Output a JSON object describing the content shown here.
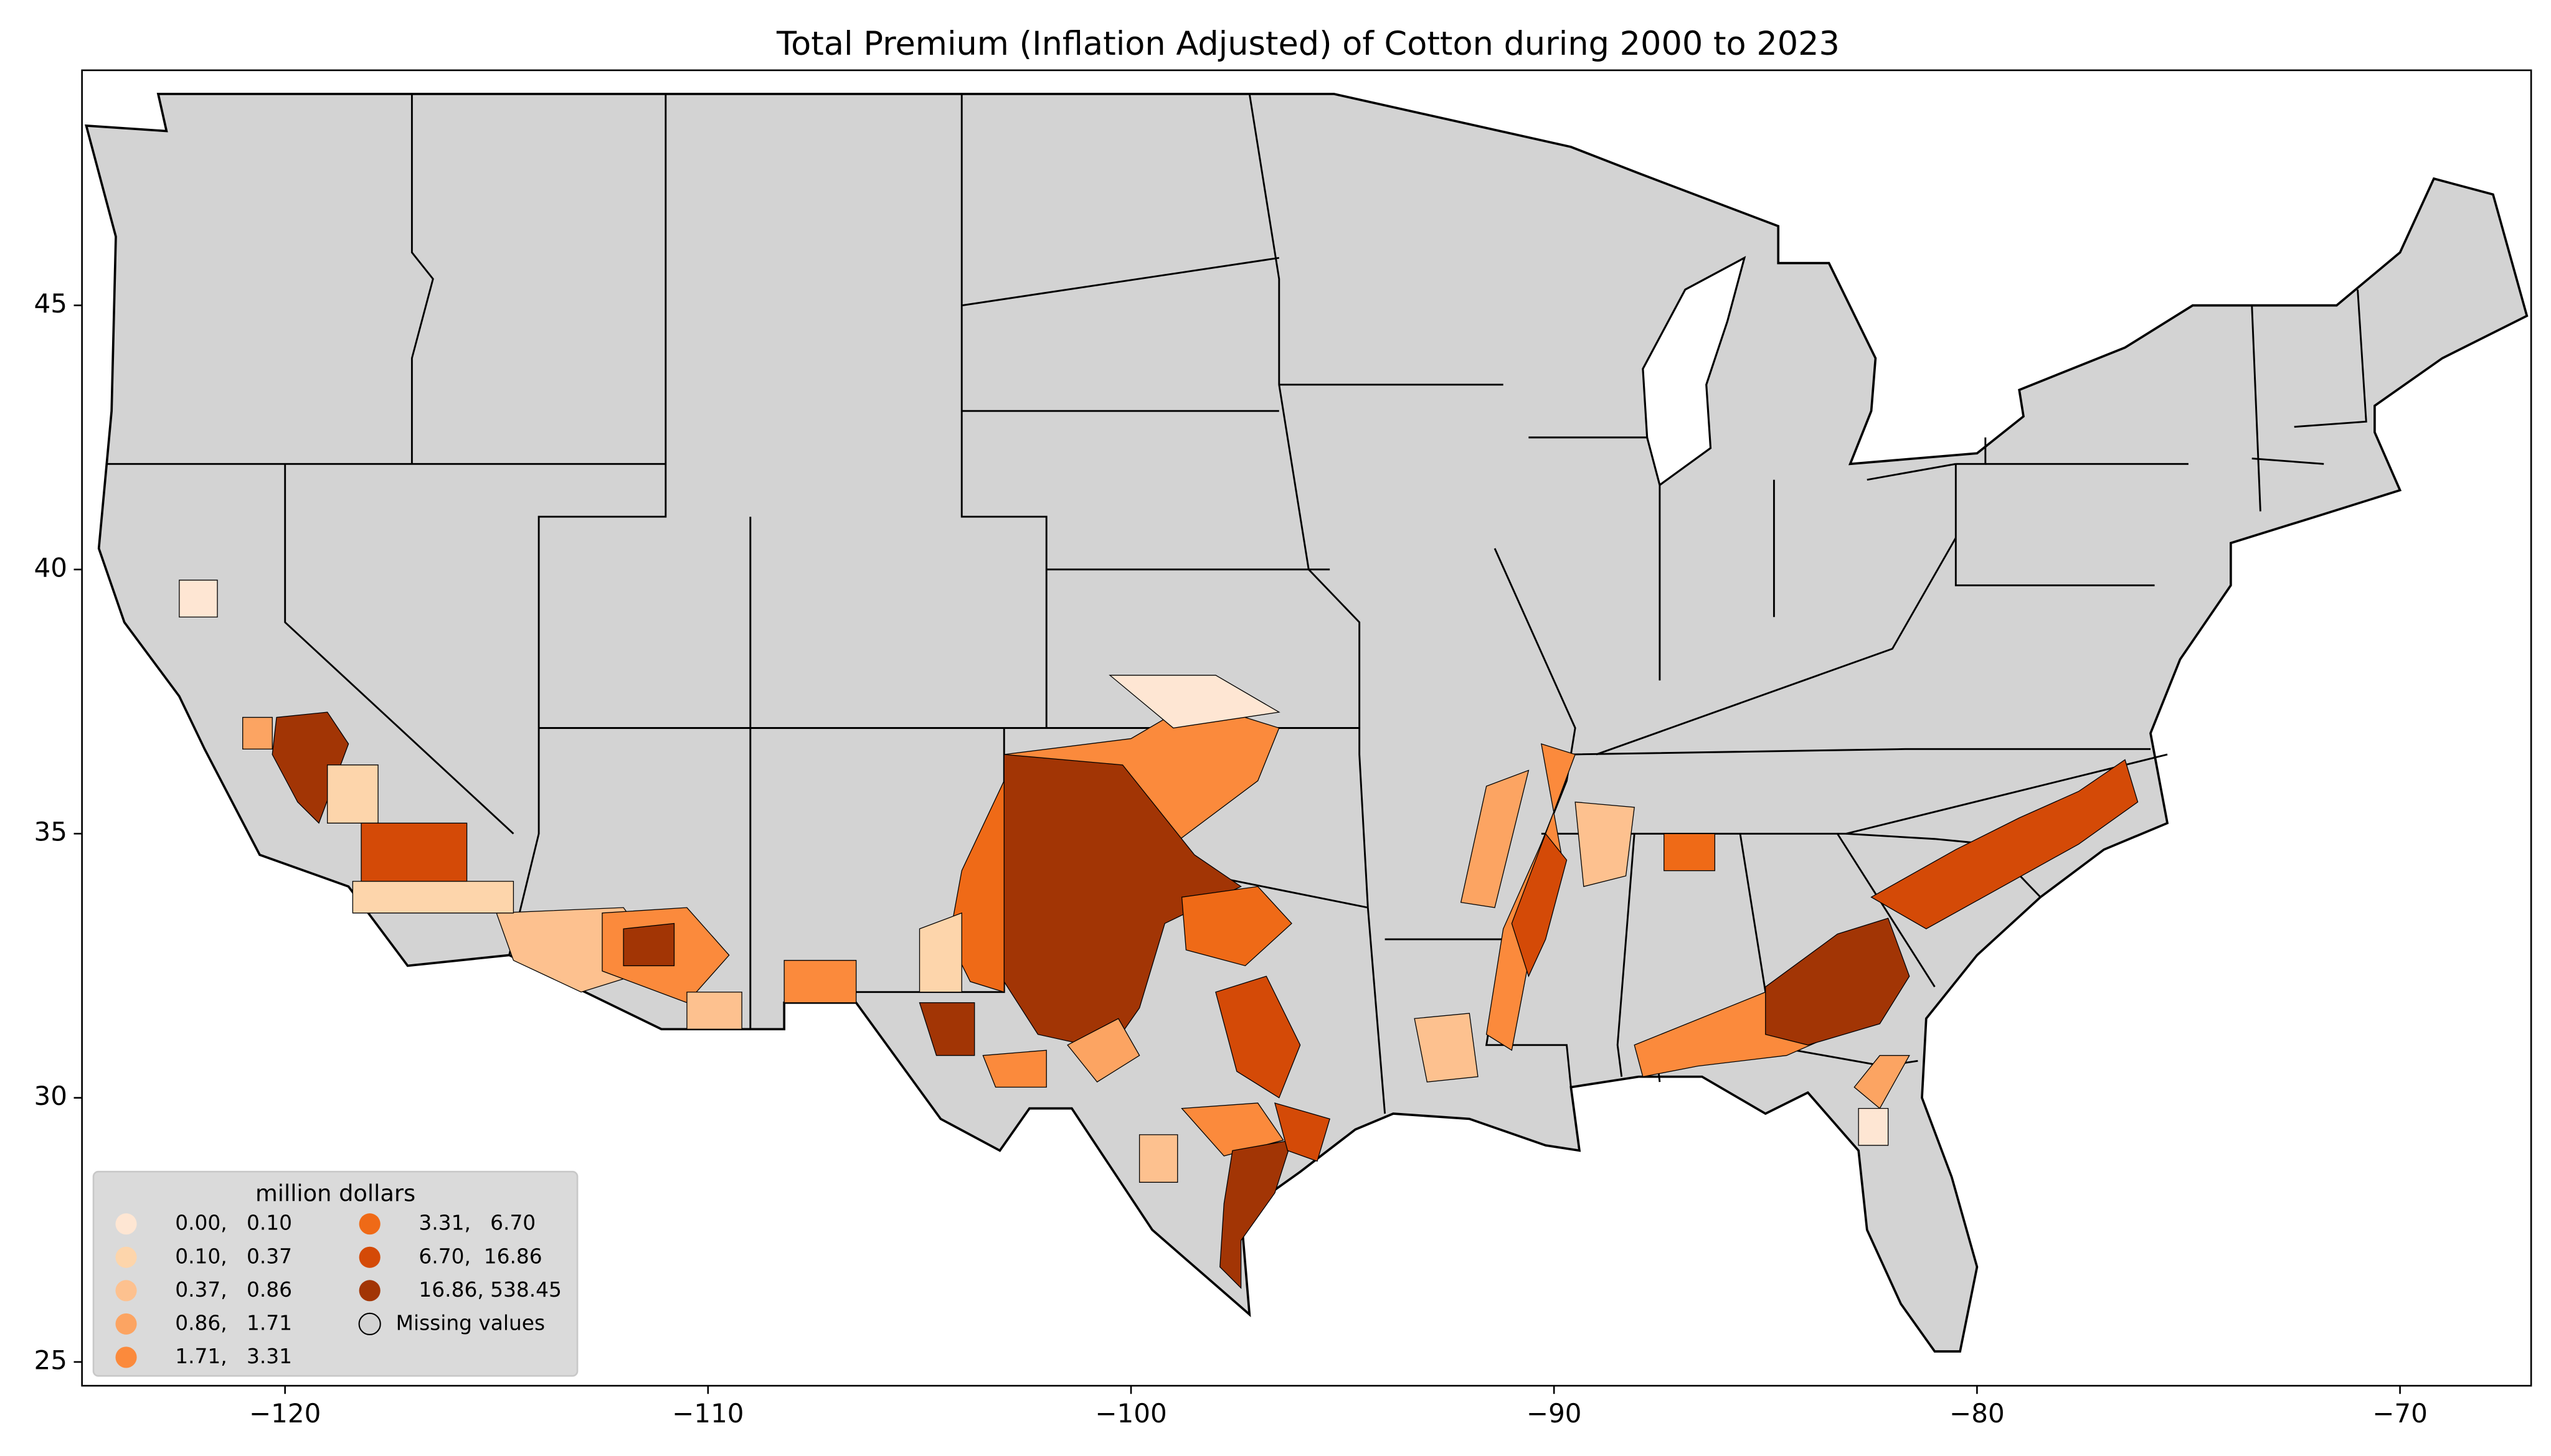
{
  "chart_data": {
    "type": "map",
    "title": "Total  Premium  (Inflation Adjusted) of Cotton during 2000 to 2023",
    "xlim": [
      -124.8,
      -66.9
    ],
    "ylim": [
      24.55,
      49.45
    ],
    "xticks": [
      {
        "value": -120,
        "label": "−120"
      },
      {
        "value": -110,
        "label": "−110"
      },
      {
        "value": -100,
        "label": "−100"
      },
      {
        "value": -90,
        "label": "−90"
      },
      {
        "value": -80,
        "label": "−80"
      },
      {
        "value": -70,
        "label": "−70"
      }
    ],
    "yticks": [
      25,
      30,
      35,
      40,
      45
    ],
    "legend": {
      "title": "million dollars",
      "position": "lower left",
      "items": [
        {
          "label": "0.00,   0.10",
          "color": "#fee6d3"
        },
        {
          "label": "0.10,   0.37",
          "color": "#fdd5ab"
        },
        {
          "label": "0.37,   0.86",
          "color": "#fdc18f"
        },
        {
          "label": "0.86,   1.71",
          "color": "#fca462"
        },
        {
          "label": "1.71,   3.31",
          "color": "#fb8a3c"
        },
        {
          "label": "3.31,   6.70",
          "color": "#ef6a17"
        },
        {
          "label": "6.70,  16.86",
          "color": "#d44a07"
        },
        {
          "label": "16.86, 538.45",
          "color": "#a23505"
        },
        {
          "label": "Missing values",
          "color": "#d3d3d3"
        }
      ]
    }
  }
}
